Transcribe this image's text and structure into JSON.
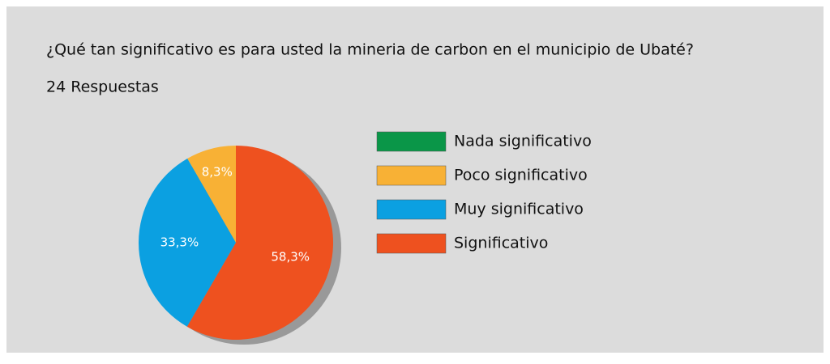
{
  "chart_data": {
    "type": "pie",
    "title": "¿Qué tan significativo es para usted la mineria de carbon en el municipio de Ubaté?",
    "subtitle": "24 Respuestas",
    "categories": [
      "Nada significativo",
      "Poco significativo",
      "Muy significativo",
      "Significativo"
    ],
    "values": [
      0,
      8.3,
      33.3,
      58.3
    ],
    "value_labels": [
      null,
      "8,3%",
      "33,3%",
      "58,3%"
    ],
    "colors": [
      "#0a9648",
      "#f8b135",
      "#0ba0e1",
      "#ee511f"
    ],
    "legend": "right"
  }
}
